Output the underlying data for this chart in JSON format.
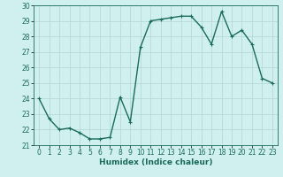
{
  "x": [
    0,
    1,
    2,
    3,
    4,
    5,
    6,
    7,
    8,
    9,
    10,
    11,
    12,
    13,
    14,
    15,
    16,
    17,
    18,
    19,
    20,
    21,
    22,
    23
  ],
  "y": [
    24,
    22.7,
    22,
    22.1,
    21.8,
    21.4,
    21.4,
    21.5,
    24.1,
    22.5,
    27.3,
    29,
    29.1,
    29.2,
    29.3,
    29.3,
    28.6,
    27.5,
    29.6,
    28,
    28.4,
    27.5,
    25.3,
    25
  ],
  "line_color": "#1a6b5a",
  "marker": "+",
  "marker_size": 3,
  "marker_lw": 0.8,
  "bg_color": "#cff0ee",
  "grid_color": "#aed6d2",
  "xlabel": "Humidex (Indice chaleur)",
  "ylim": [
    21,
    30
  ],
  "xlim": [
    -0.5,
    23.5
  ],
  "yticks": [
    21,
    22,
    23,
    24,
    25,
    26,
    27,
    28,
    29,
    30
  ],
  "xticks": [
    0,
    1,
    2,
    3,
    4,
    5,
    6,
    7,
    8,
    9,
    10,
    11,
    12,
    13,
    14,
    15,
    16,
    17,
    18,
    19,
    20,
    21,
    22,
    23
  ],
  "tick_fontsize": 5.5,
  "xlabel_fontsize": 6.5,
  "line_width": 1.0
}
